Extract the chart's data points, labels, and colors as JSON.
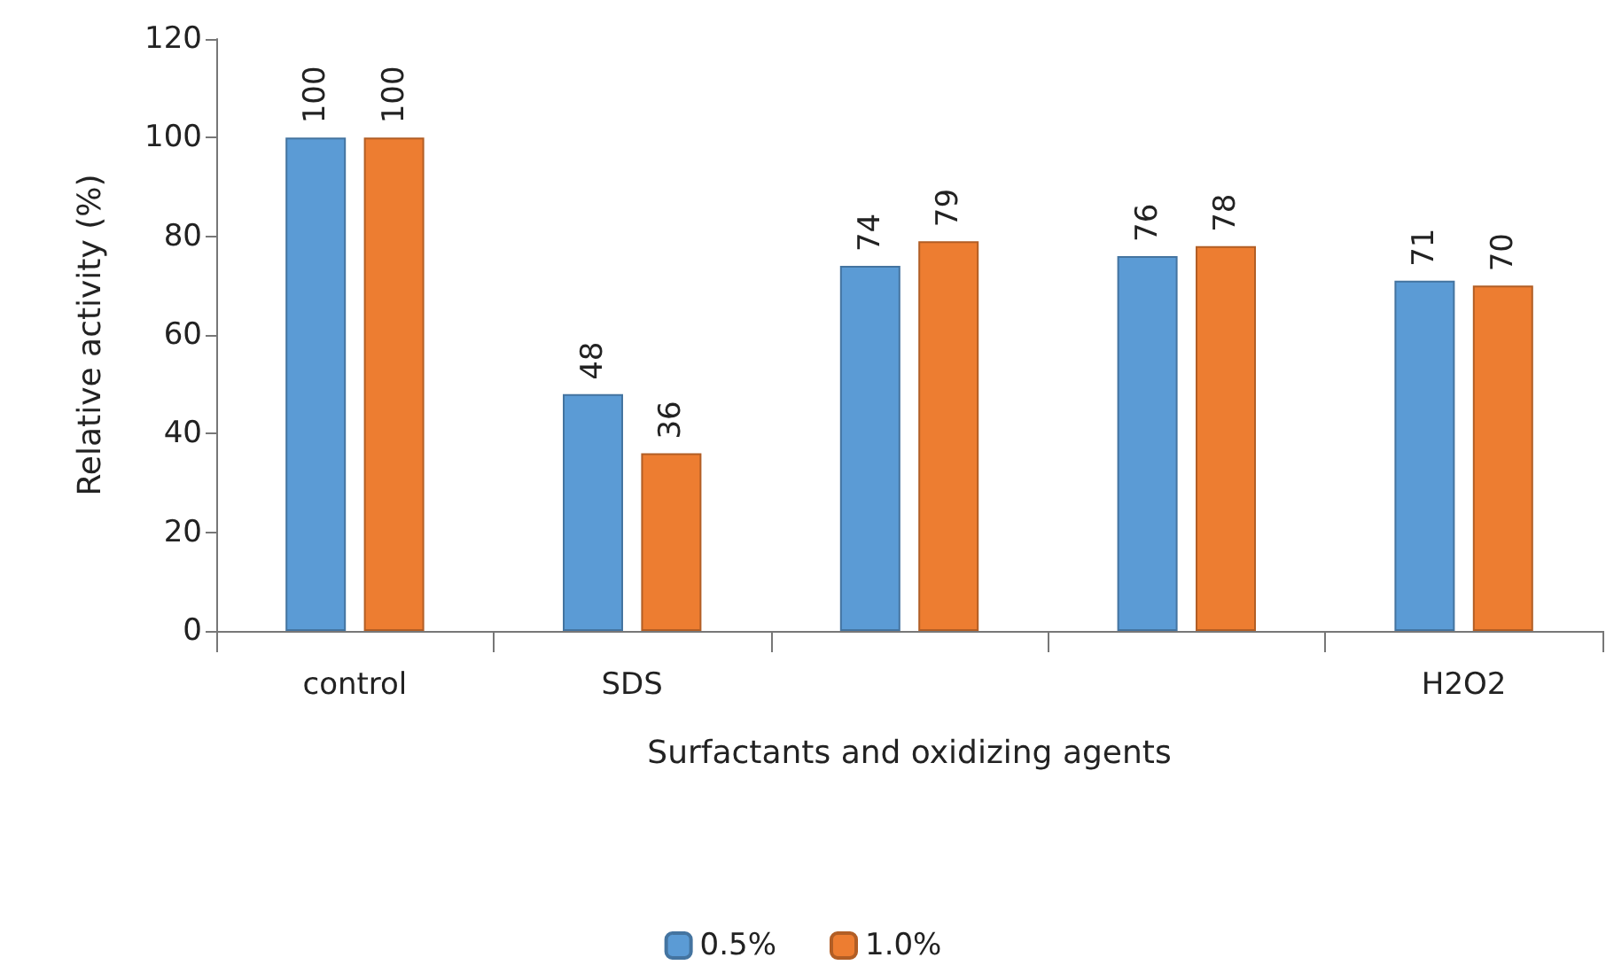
{
  "chart_data": {
    "type": "bar",
    "xlabel": "Surfactants and oxidizing agents",
    "ylabel": "Relative activity (%)",
    "categories": [
      "control",
      "SDS",
      null,
      null,
      "H2O2"
    ],
    "series": [
      {
        "name": "0.5%",
        "color": "#5b9bd5",
        "values": [
          100,
          48,
          74,
          76,
          71
        ]
      },
      {
        "name": "1.0%",
        "color": "#ed7d31",
        "values": [
          100,
          36,
          79,
          78,
          70
        ]
      }
    ],
    "ylim": [
      0,
      120
    ],
    "yticks": [
      0,
      20,
      40,
      60,
      80,
      100,
      120
    ],
    "grid": false,
    "legend": "bottom",
    "data_labels": true
  }
}
